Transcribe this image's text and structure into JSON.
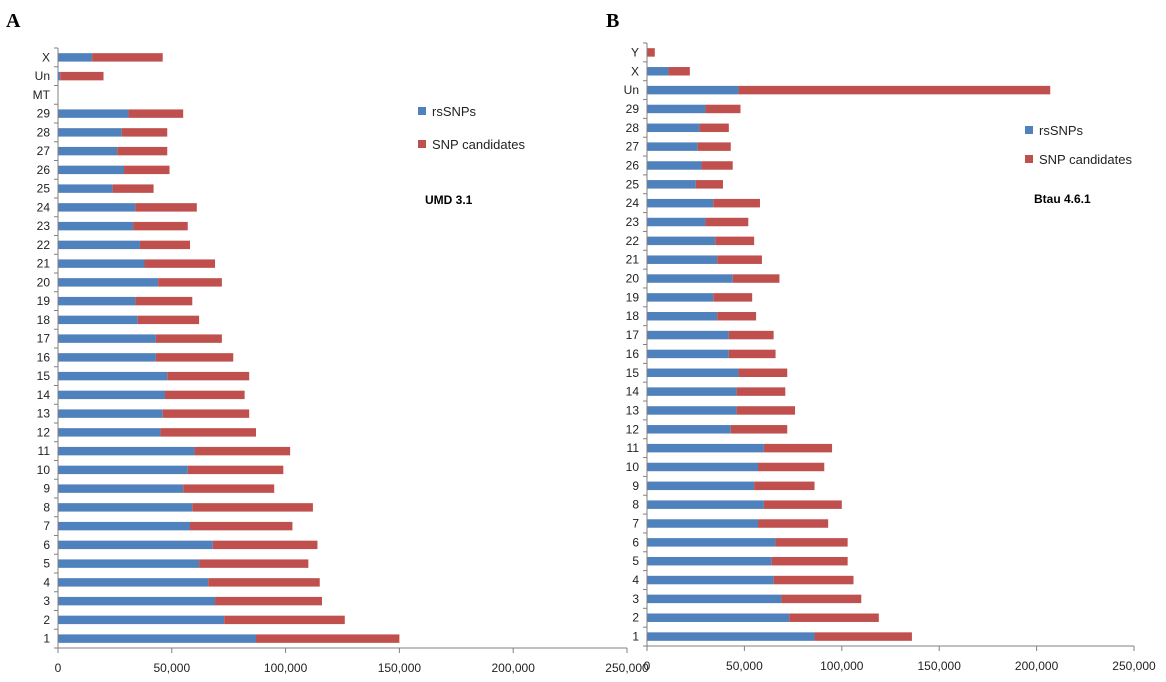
{
  "colors": {
    "rs": "#4f81bd",
    "cand": "#c0504d",
    "axis": "#808080"
  },
  "chart_data": [
    {
      "panel": "A",
      "type": "bar",
      "orientation": "horizontal",
      "stacked": true,
      "annotation": "UMD 3.1",
      "xlim": [
        0,
        250000
      ],
      "xticks": [
        "0",
        "50,000",
        "100,000",
        "150,000",
        "200,000",
        "250,000"
      ],
      "xtick_values": [
        0,
        50000,
        100000,
        150000,
        200000,
        250000
      ],
      "legend_position": "right",
      "categories": [
        "X",
        "Un",
        "MT",
        "29",
        "28",
        "27",
        "26",
        "25",
        "24",
        "23",
        "22",
        "21",
        "20",
        "19",
        "18",
        "17",
        "16",
        "15",
        "14",
        "13",
        "12",
        "11",
        "10",
        "9",
        "8",
        "7",
        "6",
        "5",
        "4",
        "3",
        "2",
        "1"
      ],
      "series": [
        {
          "name": "rsSNPs",
          "color": "#4f81bd",
          "values": [
            15000,
            1000,
            0,
            31000,
            28000,
            26000,
            29000,
            24000,
            34000,
            33000,
            36000,
            38000,
            44000,
            34000,
            35000,
            43000,
            43000,
            48000,
            47000,
            46000,
            45000,
            60000,
            57000,
            55000,
            59000,
            58000,
            68000,
            62000,
            66000,
            69000,
            73000,
            87000
          ]
        },
        {
          "name": "SNP candidates",
          "color": "#c0504d",
          "values": [
            31000,
            19000,
            0,
            24000,
            20000,
            22000,
            20000,
            18000,
            27000,
            24000,
            22000,
            31000,
            28000,
            25000,
            27000,
            29000,
            34000,
            36000,
            35000,
            38000,
            42000,
            42000,
            42000,
            40000,
            53000,
            45000,
            46000,
            48000,
            49000,
            47000,
            53000,
            63000
          ]
        }
      ]
    },
    {
      "panel": "B",
      "type": "bar",
      "orientation": "horizontal",
      "stacked": true,
      "annotation": "Btau 4.6.1",
      "xlim": [
        0,
        250000
      ],
      "xticks": [
        "0",
        "50,000",
        "100,000",
        "150,000",
        "200,000",
        "250,000"
      ],
      "xtick_values": [
        0,
        50000,
        100000,
        150000,
        200000,
        250000
      ],
      "legend_position": "right",
      "categories": [
        "Y",
        "X",
        "Un",
        "29",
        "28",
        "27",
        "26",
        "25",
        "24",
        "23",
        "22",
        "21",
        "20",
        "19",
        "18",
        "17",
        "16",
        "15",
        "14",
        "13",
        "12",
        "11",
        "10",
        "9",
        "8",
        "7",
        "6",
        "5",
        "4",
        "3",
        "2",
        "1"
      ],
      "series": [
        {
          "name": "rsSNPs",
          "color": "#4f81bd",
          "values": [
            0,
            11000,
            47000,
            30000,
            27000,
            26000,
            28000,
            25000,
            34000,
            30000,
            35000,
            36000,
            44000,
            34000,
            36000,
            42000,
            42000,
            47000,
            46000,
            46000,
            43000,
            60000,
            57000,
            55000,
            60000,
            57000,
            66000,
            64000,
            65000,
            69000,
            73000,
            86000
          ]
        },
        {
          "name": "SNP candidates",
          "color": "#c0504d",
          "values": [
            4000,
            11000,
            160000,
            18000,
            15000,
            17000,
            16000,
            14000,
            24000,
            22000,
            20000,
            23000,
            24000,
            20000,
            20000,
            23000,
            24000,
            25000,
            25000,
            30000,
            29000,
            35000,
            34000,
            31000,
            40000,
            36000,
            37000,
            39000,
            41000,
            41000,
            46000,
            50000
          ]
        }
      ]
    }
  ]
}
